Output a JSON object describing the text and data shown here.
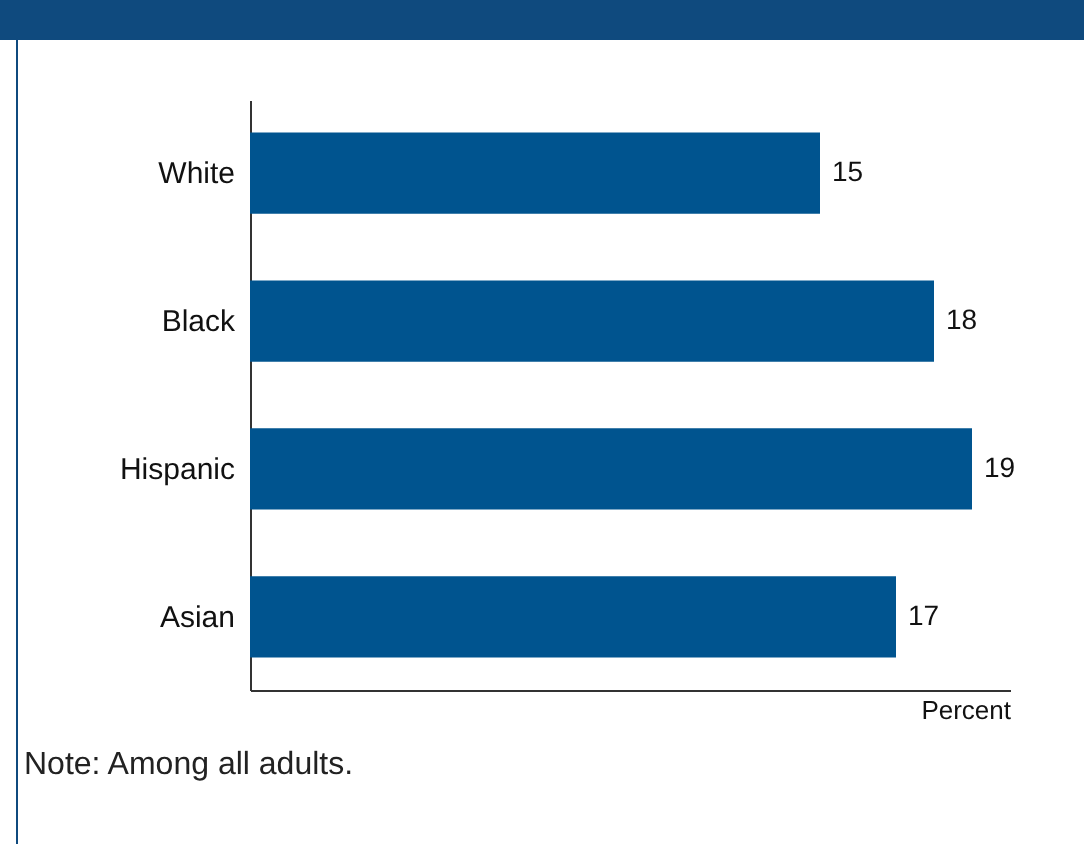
{
  "chart_data": {
    "type": "bar",
    "orientation": "horizontal",
    "xlabel": "Percent",
    "categories": [
      "White",
      "Black",
      "Hispanic",
      "Asian"
    ],
    "values": [
      15,
      18,
      19,
      17
    ],
    "color": "#00548f",
    "xlim": [
      0,
      20
    ],
    "tick_labels": "y",
    "data_labels": true,
    "grid": false,
    "annotations": [
      "Note: Among all adults."
    ]
  }
}
